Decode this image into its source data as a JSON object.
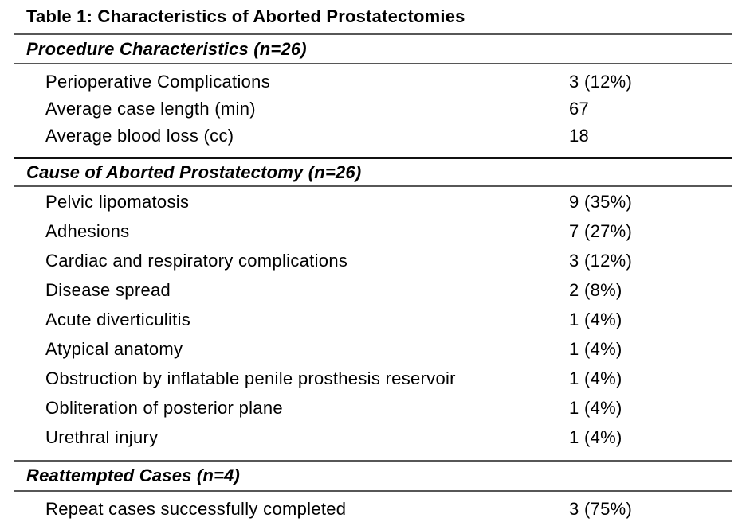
{
  "title": "Table 1: Characteristics of Aborted Prostatectomies",
  "table": {
    "sections": [
      {
        "header": "Procedure Characteristics (n=26)",
        "rows": [
          {
            "label": "Perioperative Complications",
            "value": "3 (12%)"
          },
          {
            "label": "Average case length (min)",
            "value": "67"
          },
          {
            "label": "Average blood loss (cc)",
            "value": "18"
          }
        ]
      },
      {
        "header": "Cause of Aborted Prostatectomy (n=26)",
        "rows": [
          {
            "label": "Pelvic lipomatosis",
            "value": "9 (35%)"
          },
          {
            "label": "Adhesions",
            "value": "7 (27%)"
          },
          {
            "label": "Cardiac and respiratory complications",
            "value": "3 (12%)"
          },
          {
            "label": "Disease spread",
            "value": "2 (8%)"
          },
          {
            "label": "Acute diverticulitis",
            "value": "1 (4%)"
          },
          {
            "label": "Atypical anatomy",
            "value": "1 (4%)"
          },
          {
            "label": "Obstruction by inflatable penile prosthesis reservoir",
            "value": "1 (4%)"
          },
          {
            "label": "Obliteration of posterior plane",
            "value": "1 (4%)"
          },
          {
            "label": "Urethral injury",
            "value": "1 (4%)"
          }
        ]
      },
      {
        "header": "Reattempted Cases (n=4)",
        "rows": [
          {
            "label": "Repeat cases successfully completed",
            "value": "3 (75%)"
          }
        ]
      }
    ]
  },
  "colors": {
    "background": "#ffffff",
    "text": "#000000",
    "rule_gray": "#575757",
    "rule_heavy": "#111111"
  }
}
